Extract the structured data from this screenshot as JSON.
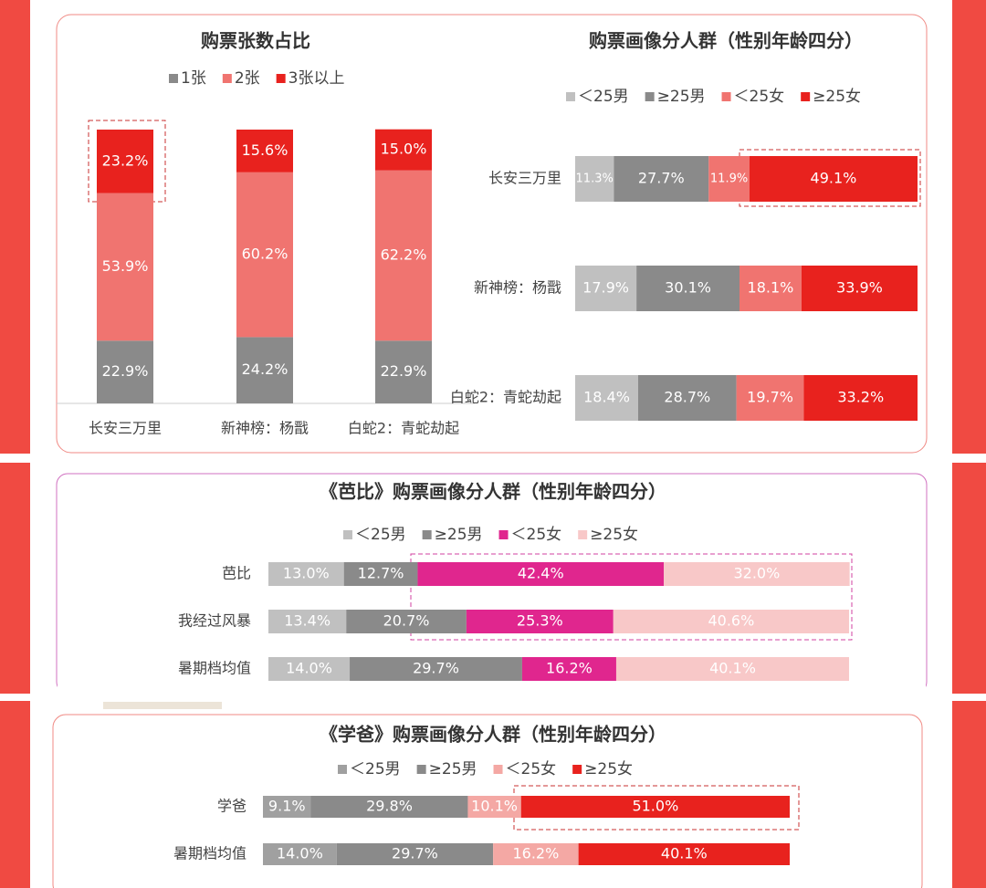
{
  "chart_data": [
    {
      "type": "stacked-bar",
      "title": "购票张数占比",
      "categories": [
        "长安三万里",
        "新神榜：杨戬",
        "白蛇2：青蛇劫起"
      ],
      "ylim": [
        0,
        100
      ],
      "series": [
        {
          "name": "1张",
          "color": "#8a8a8a",
          "values": [
            22.9,
            24.2,
            22.9
          ],
          "value_labels": [
            "22.9%",
            "24.2%",
            "22.9%"
          ]
        },
        {
          "name": "2张",
          "color": "#f07470",
          "values": [
            53.9,
            60.2,
            62.2
          ],
          "value_labels": [
            "53.9%",
            "60.2%",
            "62.2%"
          ]
        },
        {
          "name": "3张以上",
          "color": "#e8221e",
          "values": [
            23.2,
            15.6,
            15.0
          ],
          "value_labels": [
            "23.2%",
            "15.6%",
            "15.0%"
          ]
        }
      ]
    },
    {
      "type": "stacked-barh",
      "title": "购票画像分人群（性别年龄四分）",
      "categories": [
        "长安三万里",
        "新神榜：杨戬",
        "白蛇2：青蛇劫起"
      ],
      "xlim": [
        0,
        100
      ],
      "series": [
        {
          "name": "＜25男",
          "color": "#c0c0c0",
          "values": [
            11.3,
            17.9,
            18.4
          ],
          "value_labels": [
            "11.3%",
            "17.9%",
            "18.4%"
          ]
        },
        {
          "name": "≥25男",
          "color": "#8a8a8a",
          "values": [
            27.7,
            30.1,
            28.7
          ],
          "value_labels": [
            "27.7%",
            "30.1%",
            "28.7%"
          ]
        },
        {
          "name": "＜25女",
          "color": "#f07470",
          "values": [
            11.9,
            18.1,
            19.7
          ],
          "value_labels": [
            "11.9%",
            "18.1%",
            "19.7%"
          ]
        },
        {
          "name": "≥25女",
          "color": "#e8221e",
          "values": [
            49.1,
            33.9,
            33.2
          ],
          "value_labels": [
            "49.1%",
            "33.9%",
            "33.2%"
          ]
        }
      ]
    },
    {
      "type": "stacked-barh",
      "title": "《芭比》购票画像分人群（性别年龄四分）",
      "categories": [
        "芭比",
        "我经过风暴",
        "暑期档均值"
      ],
      "xlim": [
        0,
        100
      ],
      "series": [
        {
          "name": "＜25男",
          "color": "#c0c0c0",
          "values": [
            13.0,
            13.4,
            14.0
          ],
          "value_labels": [
            "13.0%",
            "13.4%",
            "14.0%"
          ]
        },
        {
          "name": "≥25男",
          "color": "#8a8a8a",
          "values": [
            12.7,
            20.7,
            29.7
          ],
          "value_labels": [
            "12.7%",
            "20.7%",
            "29.7%"
          ]
        },
        {
          "name": "＜25女",
          "color": "#e0268e",
          "values": [
            42.4,
            25.3,
            16.2
          ],
          "value_labels": [
            "42.4%",
            "25.3%",
            "16.2%"
          ]
        },
        {
          "name": "≥25女",
          "color": "#f8c8c8",
          "values": [
            32.0,
            40.6,
            40.1
          ],
          "value_labels": [
            "32.0%",
            "40.6%",
            "40.1%"
          ]
        }
      ]
    },
    {
      "type": "stacked-barh",
      "title": "《学爸》购票画像分人群（性别年龄四分）",
      "categories": [
        "学爸",
        "暑期档均值"
      ],
      "xlim": [
        0,
        100
      ],
      "series": [
        {
          "name": "＜25男",
          "color": "#a0a0a0",
          "values": [
            9.1,
            14.0
          ],
          "value_labels": [
            "9.1%",
            "14.0%"
          ]
        },
        {
          "name": "≥25男",
          "color": "#8a8a8a",
          "values": [
            29.8,
            29.7
          ],
          "value_labels": [
            "29.8%",
            "29.7%"
          ]
        },
        {
          "name": "＜25女",
          "color": "#f4a8a4",
          "values": [
            10.1,
            16.2
          ],
          "value_labels": [
            "10.1%",
            "16.2%"
          ]
        },
        {
          "name": "≥25女",
          "color": "#e8221e",
          "values": [
            51.0,
            40.1
          ],
          "value_labels": [
            "51.0%",
            "40.1%"
          ]
        }
      ]
    }
  ]
}
